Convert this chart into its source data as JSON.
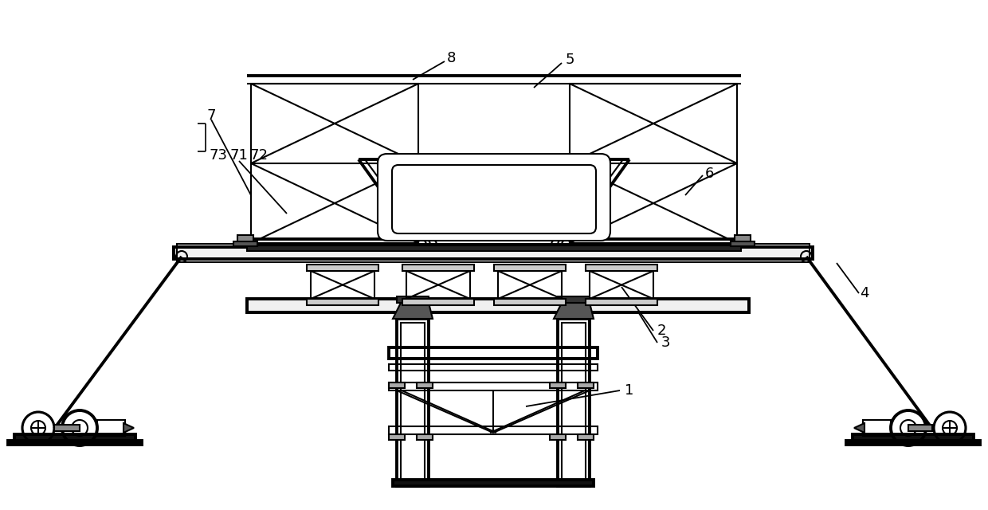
{
  "bg_color": "#ffffff",
  "line_color": "#000000",
  "lw": 1.5,
  "tlw": 2.8,
  "fig_width": 12.4,
  "fig_height": 6.4,
  "dpi": 100
}
